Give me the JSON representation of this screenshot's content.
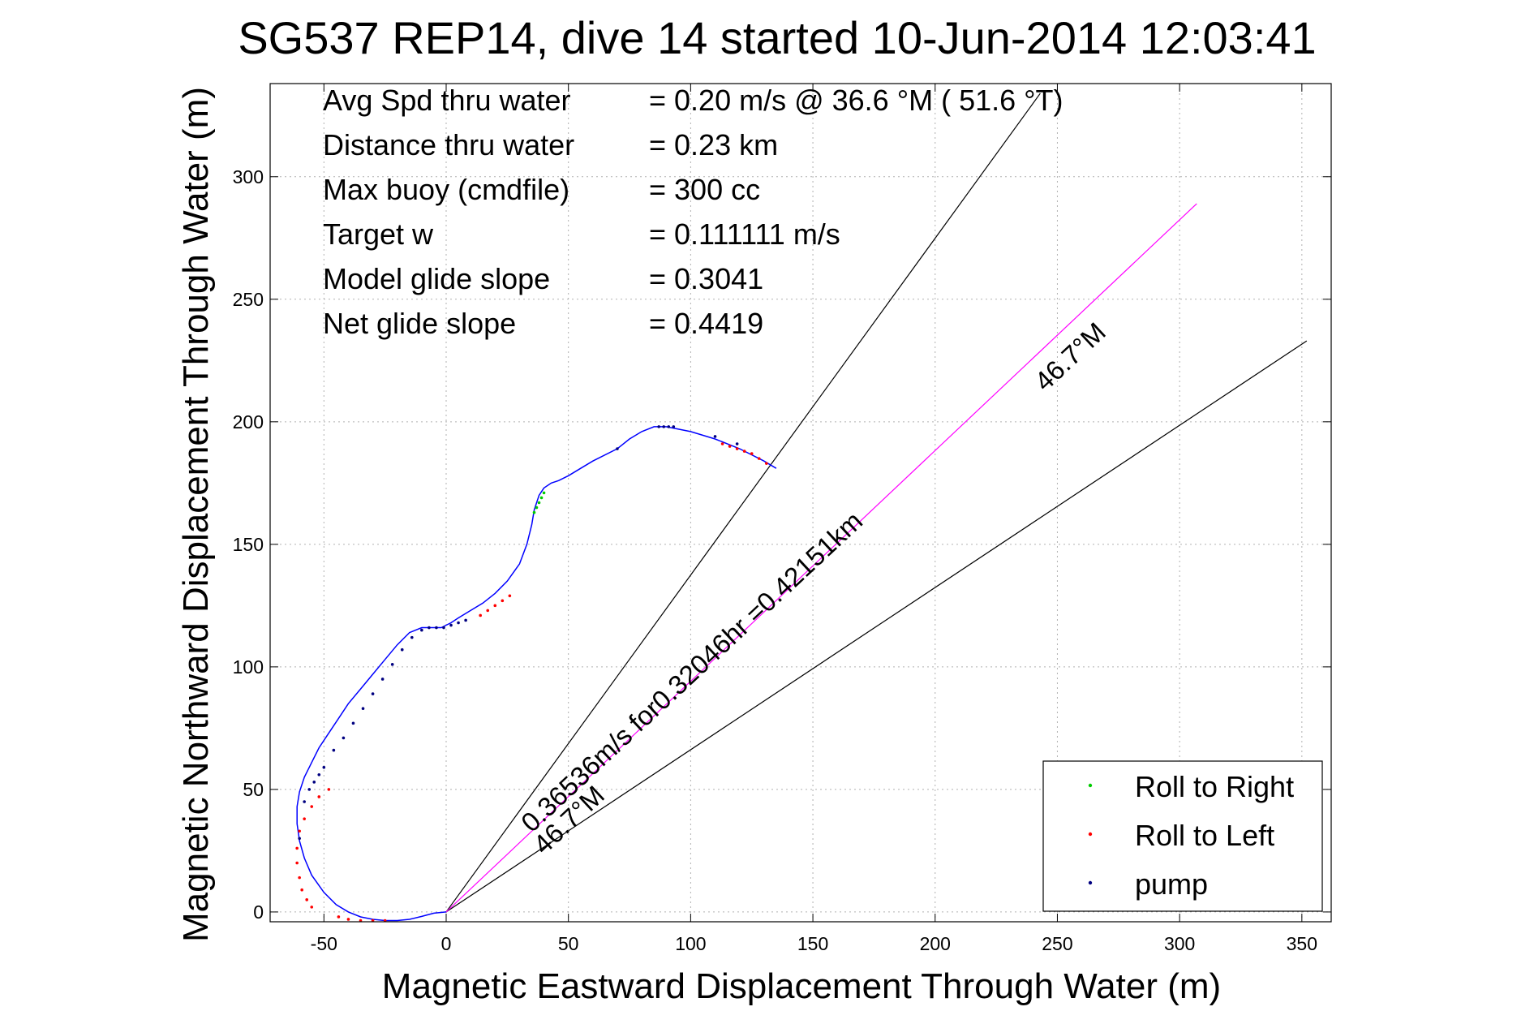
{
  "chart_data": {
    "type": "line",
    "title": "SG537 REP14, dive 14 started 10-Jun-2014 12:03:41",
    "xlabel": "Magnetic Eastward Displacement Through Water (m)",
    "ylabel": "Magnetic Northward Displacement Through Water (m)",
    "xlim": [
      -72,
      362
    ],
    "ylim": [
      -4,
      338
    ],
    "xticks": [
      -50,
      0,
      50,
      100,
      150,
      200,
      250,
      300,
      350
    ],
    "yticks": [
      0,
      50,
      100,
      150,
      200,
      250,
      300
    ],
    "grid": true,
    "stats": [
      {
        "label": "Avg Spd thru water",
        "value": "=  0.20 m/s @  36.6 °M ( 51.6 °T)"
      },
      {
        "label": "Distance thru water",
        "value": "=  0.23 km"
      },
      {
        "label": "Max buoy (cmdfile)",
        "value": "= 300 cc"
      },
      {
        "label": "Target w",
        "value": "= 0.111111 m/s"
      },
      {
        "label": "Model glide slope",
        "value": "= 0.3041"
      },
      {
        "label": "Net glide slope",
        "value": "= 0.4419"
      }
    ],
    "track": {
      "color": "#0000ff",
      "x": [
        0,
        -5,
        -10,
        -15,
        -20,
        -25,
        -30,
        -35,
        -40,
        -45,
        -50,
        -55,
        -58,
        -60,
        -61,
        -61,
        -60,
        -58,
        -55,
        -52,
        -48,
        -44,
        -40,
        -35,
        -30,
        -25,
        -20,
        -15,
        -10,
        -5,
        -2,
        0,
        2,
        5,
        10,
        15,
        20,
        25,
        30,
        33,
        35,
        36,
        38,
        40,
        43,
        46,
        50,
        55,
        60,
        70,
        75,
        80,
        85,
        90,
        95,
        100,
        110,
        120,
        130,
        135
      ],
      "y": [
        0,
        -0.5,
        -1.8,
        -3,
        -3.5,
        -3.5,
        -3,
        -2,
        0,
        3,
        8,
        15,
        22,
        29,
        36,
        43,
        49,
        55,
        61,
        67,
        73,
        79,
        85,
        91,
        97,
        103,
        109,
        114,
        116,
        116,
        116,
        117,
        118,
        120,
        123,
        126,
        130,
        135,
        142,
        150,
        158,
        164,
        170,
        173,
        175,
        176,
        178,
        181,
        184,
        189,
        193,
        196,
        198,
        198,
        197,
        196,
        193,
        189,
        184,
        181
      ]
    },
    "roll_right_points": {
      "color": "#00cc00",
      "x": [
        36,
        37,
        38,
        39,
        40
      ],
      "y": [
        163,
        165,
        167,
        169,
        171
      ]
    },
    "roll_left_points": {
      "color": "#ff0000",
      "x": [
        -55,
        -57,
        -59,
        -60,
        -61,
        -61,
        -60,
        -58,
        -55,
        -52,
        -48,
        -44,
        -40,
        -35,
        -30,
        -25,
        14,
        17,
        20,
        23,
        26,
        113,
        116,
        119,
        122,
        125,
        128,
        131
      ],
      "y": [
        2,
        5,
        9,
        14,
        20,
        26,
        33,
        38,
        43,
        47,
        50,
        -2,
        -3,
        -3.5,
        -3.5,
        -3.5,
        121,
        123,
        125,
        127,
        129,
        191,
        190,
        189,
        188,
        187,
        185,
        183
      ]
    },
    "pump_points": {
      "color": "#000080",
      "x": [
        -60,
        -58,
        -56,
        -54,
        -52,
        -50,
        -46,
        -42,
        -38,
        -34,
        -30,
        -26,
        -22,
        -18,
        -14,
        -10,
        -7,
        -4,
        -1,
        2,
        5,
        8,
        70,
        87,
        89,
        91,
        93,
        110,
        119
      ],
      "y": [
        30,
        45,
        50,
        53,
        56,
        59,
        66,
        71,
        77,
        83,
        89,
        95,
        101,
        107,
        112,
        115,
        116,
        116,
        116,
        117,
        118,
        119,
        189,
        198,
        198,
        198,
        198,
        194,
        191
      ]
    },
    "heading_lines": [
      {
        "x": [
          0,
          243
        ],
        "y": [
          0,
          334
        ],
        "color": "#000000"
      },
      {
        "x": [
          0,
          352
        ],
        "y": [
          0,
          233
        ],
        "color": "#000000"
      },
      {
        "x": [
          0,
          307
        ],
        "y": [
          0,
          289
        ],
        "color": "#ff00ff"
      }
    ],
    "annotations": [
      {
        "text": "46.7°M",
        "x": 245,
        "y": 212,
        "angle": -43
      },
      {
        "text": "0.36536m/s for0.32046hr =0.42151km",
        "x": 35,
        "y": 32,
        "angle": -43
      },
      {
        "text": "46.7°M",
        "x": 40,
        "y": 23,
        "angle": -43
      }
    ],
    "legend": {
      "position": "bottom-right",
      "entries": [
        {
          "label": "Roll to Right",
          "color": "#00cc00"
        },
        {
          "label": "Roll to Left",
          "color": "#ff0000"
        },
        {
          "label": "pump",
          "color": "#000080"
        }
      ]
    }
  }
}
